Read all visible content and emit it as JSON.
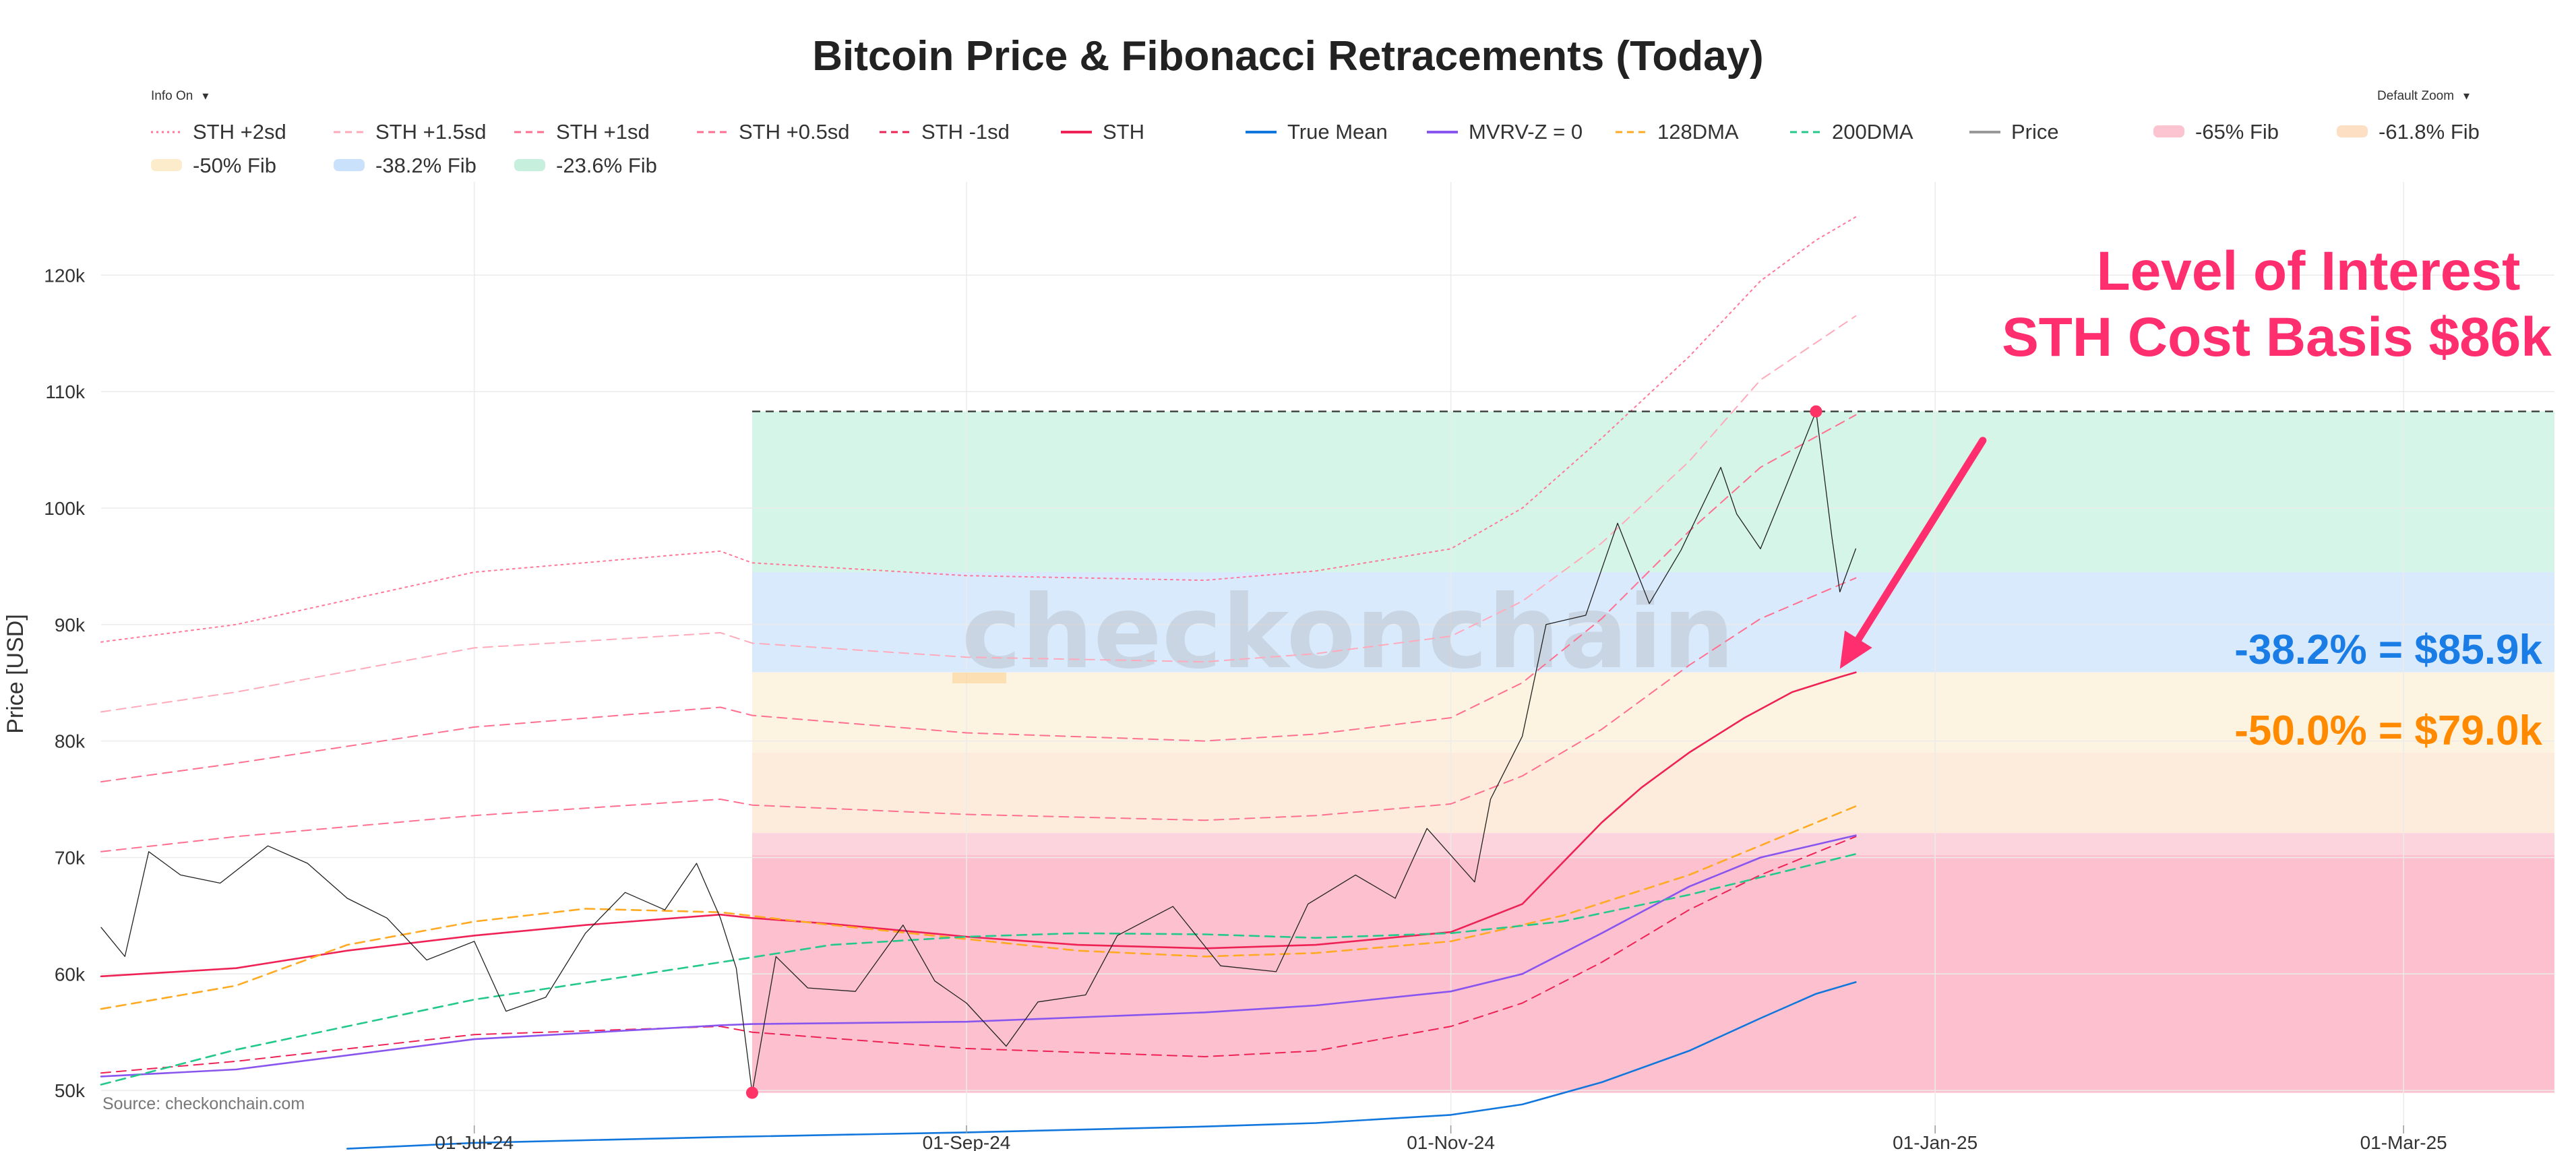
{
  "controls": {
    "info_toggle": "Info On",
    "zoom_select": "Default Zoom"
  },
  "chart_data": {
    "type": "line",
    "title": "Bitcoin Price & Fibonacci Retracements (Today)",
    "ylabel": "Price [USD]",
    "xlabel": "",
    "y_scale": "linear",
    "ylim": [
      47000,
      128000
    ],
    "y_ticks": [
      50000,
      60000,
      70000,
      80000,
      90000,
      100000,
      110000,
      120000
    ],
    "y_tick_labels": [
      "50k",
      "60k",
      "70k",
      "80k",
      "90k",
      "100k",
      "110k",
      "120k"
    ],
    "xlim": [
      "2024-05-15",
      "2025-03-20"
    ],
    "x_ticks": [
      "2024-07-01",
      "2024-09-01",
      "2024-11-01",
      "2025-01-01",
      "2025-03-01"
    ],
    "x_tick_labels": [
      "01-Jul-24",
      "01-Sep-24",
      "01-Nov-24",
      "01-Jan-25",
      "01-Mar-25"
    ],
    "grid": true,
    "legend_position": "top",
    "source": "Source: checkonchain.com",
    "watermark": "checkonchain",
    "fib_range": {
      "start": "2024-08-05",
      "end": "2025-03-20",
      "low": 49800,
      "high": 108300
    },
    "fib_bands": [
      {
        "name": "-23.6% Fib",
        "from": 94500,
        "to": 108300,
        "color": "#d4f5e7"
      },
      {
        "name": "-38.2% Fib",
        "from": 85900,
        "to": 94500,
        "color": "#d9eafd"
      },
      {
        "name": "-50% Fib",
        "from": 79000,
        "to": 85900,
        "color": "#fdf3e1"
      },
      {
        "name": "-61.8% Fib",
        "from": 72100,
        "to": 79000,
        "color": "#fdecdc"
      },
      {
        "name": "-65% Fib",
        "from": 70200,
        "to": 72100,
        "color": "#fcd4dd"
      },
      {
        "name": "below -65%",
        "from": 49800,
        "to": 70200,
        "color": "#fdc0cf"
      }
    ],
    "ath_line": {
      "value": 108300,
      "start": "2024-08-05",
      "end": "2025-03-20"
    },
    "markers": [
      {
        "date": "2024-08-05",
        "value": 49800,
        "color": "#ff3366"
      },
      {
        "date": "2024-12-17",
        "value": 108300,
        "color": "#ff3366"
      }
    ],
    "legend": [
      {
        "label": "STH +2sd",
        "color": "#ff7799",
        "style": "dot"
      },
      {
        "label": "STH +1.5sd",
        "color": "#ffaabb",
        "style": "dash"
      },
      {
        "label": "STH +1sd",
        "color": "#ff6f8f",
        "style": "dash"
      },
      {
        "label": "STH +0.5sd",
        "color": "#ff6f8f",
        "style": "dash"
      },
      {
        "label": "STH -1sd",
        "color": "#ee2255",
        "style": "dash"
      },
      {
        "label": "STH",
        "color": "#ee2255",
        "style": "solid"
      },
      {
        "label": "True Mean",
        "color": "#1177dd",
        "style": "solid"
      },
      {
        "label": "MVRV-Z = 0",
        "color": "#8855ee",
        "style": "solid"
      },
      {
        "label": "128DMA",
        "color": "#ffaa22",
        "style": "dash"
      },
      {
        "label": "200DMA",
        "color": "#22c98a",
        "style": "dash"
      },
      {
        "label": "Price",
        "color": "#999999",
        "style": "solid"
      },
      {
        "label": "-65% Fib",
        "color": "#fcc4d0",
        "style": "band"
      },
      {
        "label": "-61.8% Fib",
        "color": "#fde0c4",
        "style": "band"
      },
      {
        "label": "-50% Fib",
        "color": "#fdeccc",
        "style": "band"
      },
      {
        "label": "-38.2% Fib",
        "color": "#c9e1fb",
        "style": "band"
      },
      {
        "label": "-23.6% Fib",
        "color": "#c6f0dd",
        "style": "band"
      }
    ],
    "annotations": [
      {
        "text": "Level of Interest",
        "color": "#ff2e6e"
      },
      {
        "text": "STH Cost Basis $86k",
        "color": "#ff2e6e"
      },
      {
        "text": "-38.2% = $85.9k",
        "color": "#1a7de6"
      },
      {
        "text": "-50.0% = $79.0k",
        "color": "#ff8a00"
      }
    ],
    "arrow": {
      "from_date": "2025-01-07",
      "from_value": 105800,
      "to_date": "2024-12-20",
      "to_value": 86200,
      "color": "#ff2e6e"
    },
    "series": [
      {
        "name": "STH +2sd",
        "color": "#ff7799",
        "style": "dot",
        "points": [
          [
            "2024-05-15",
            88500
          ],
          [
            "2024-06-01",
            90000
          ],
          [
            "2024-07-01",
            94500
          ],
          [
            "2024-08-01",
            96300
          ],
          [
            "2024-08-05",
            95300
          ],
          [
            "2024-09-01",
            94200
          ],
          [
            "2024-10-01",
            93800
          ],
          [
            "2024-10-15",
            94600
          ],
          [
            "2024-11-01",
            96500
          ],
          [
            "2024-11-10",
            100000
          ],
          [
            "2024-11-20",
            106000
          ],
          [
            "2024-12-01",
            113000
          ],
          [
            "2024-12-10",
            119500
          ],
          [
            "2024-12-17",
            123000
          ],
          [
            "2024-12-22",
            125000
          ]
        ]
      },
      {
        "name": "STH +1.5sd",
        "color": "#ffaabb",
        "style": "dash",
        "points": [
          [
            "2024-05-15",
            82500
          ],
          [
            "2024-06-01",
            84200
          ],
          [
            "2024-07-01",
            88000
          ],
          [
            "2024-08-01",
            89300
          ],
          [
            "2024-08-05",
            88400
          ],
          [
            "2024-09-01",
            87200
          ],
          [
            "2024-10-01",
            86800
          ],
          [
            "2024-10-15",
            87500
          ],
          [
            "2024-11-01",
            89000
          ],
          [
            "2024-11-10",
            92000
          ],
          [
            "2024-11-20",
            97000
          ],
          [
            "2024-12-01",
            104000
          ],
          [
            "2024-12-10",
            111000
          ],
          [
            "2024-12-22",
            116500
          ]
        ]
      },
      {
        "name": "STH +1sd",
        "color": "#ff6f8f",
        "style": "dash",
        "points": [
          [
            "2024-05-15",
            76500
          ],
          [
            "2024-06-01",
            78100
          ],
          [
            "2024-07-01",
            81200
          ],
          [
            "2024-08-01",
            82900
          ],
          [
            "2024-08-05",
            82200
          ],
          [
            "2024-09-01",
            80700
          ],
          [
            "2024-10-01",
            80000
          ],
          [
            "2024-10-15",
            80600
          ],
          [
            "2024-11-01",
            82000
          ],
          [
            "2024-11-10",
            85000
          ],
          [
            "2024-11-20",
            90500
          ],
          [
            "2024-12-01",
            98000
          ],
          [
            "2024-12-10",
            103500
          ],
          [
            "2024-12-22",
            108000
          ]
        ]
      },
      {
        "name": "STH +0.5sd",
        "color": "#ff6f8f",
        "style": "dash",
        "points": [
          [
            "2024-05-15",
            70500
          ],
          [
            "2024-06-01",
            71800
          ],
          [
            "2024-07-01",
            73600
          ],
          [
            "2024-08-01",
            75000
          ],
          [
            "2024-08-05",
            74500
          ],
          [
            "2024-09-01",
            73700
          ],
          [
            "2024-10-01",
            73200
          ],
          [
            "2024-10-15",
            73600
          ],
          [
            "2024-11-01",
            74600
          ],
          [
            "2024-11-10",
            77000
          ],
          [
            "2024-11-20",
            81000
          ],
          [
            "2024-12-01",
            86500
          ],
          [
            "2024-12-10",
            90500
          ],
          [
            "2024-12-22",
            94000
          ]
        ]
      },
      {
        "name": "STH -1sd",
        "color": "#ee2255",
        "style": "dash",
        "points": [
          [
            "2024-05-15",
            51500
          ],
          [
            "2024-06-01",
            52500
          ],
          [
            "2024-07-01",
            54800
          ],
          [
            "2024-08-01",
            55500
          ],
          [
            "2024-08-05",
            55000
          ],
          [
            "2024-09-01",
            53600
          ],
          [
            "2024-10-01",
            52900
          ],
          [
            "2024-10-15",
            53400
          ],
          [
            "2024-11-01",
            55500
          ],
          [
            "2024-11-10",
            57500
          ],
          [
            "2024-11-20",
            61000
          ],
          [
            "2024-12-01",
            65500
          ],
          [
            "2024-12-10",
            68500
          ],
          [
            "2024-12-22",
            71800
          ]
        ]
      },
      {
        "name": "STH",
        "color": "#ee2255",
        "style": "solid",
        "width": 2.6,
        "points": [
          [
            "2024-05-15",
            59800
          ],
          [
            "2024-06-01",
            60500
          ],
          [
            "2024-06-15",
            62000
          ],
          [
            "2024-07-01",
            63300
          ],
          [
            "2024-07-15",
            64200
          ],
          [
            "2024-08-01",
            65100
          ],
          [
            "2024-08-05",
            64800
          ],
          [
            "2024-08-15",
            64300
          ],
          [
            "2024-09-01",
            63200
          ],
          [
            "2024-09-15",
            62500
          ],
          [
            "2024-10-01",
            62200
          ],
          [
            "2024-10-15",
            62500
          ],
          [
            "2024-11-01",
            63600
          ],
          [
            "2024-11-10",
            66000
          ],
          [
            "2024-11-15",
            69500
          ],
          [
            "2024-11-20",
            73000
          ],
          [
            "2024-11-25",
            76000
          ],
          [
            "2024-12-01",
            79000
          ],
          [
            "2024-12-08",
            82000
          ],
          [
            "2024-12-14",
            84200
          ],
          [
            "2024-12-20",
            85500
          ],
          [
            "2024-12-22",
            85900
          ]
        ]
      },
      {
        "name": "True Mean",
        "color": "#1177dd",
        "style": "solid",
        "width": 2.6,
        "points": [
          [
            "2024-06-15",
            45000
          ],
          [
            "2024-07-01",
            45500
          ],
          [
            "2024-08-01",
            46000
          ],
          [
            "2024-09-01",
            46400
          ],
          [
            "2024-10-01",
            46900
          ],
          [
            "2024-10-15",
            47200
          ],
          [
            "2024-11-01",
            47900
          ],
          [
            "2024-11-10",
            48800
          ],
          [
            "2024-11-20",
            50700
          ],
          [
            "2024-12-01",
            53400
          ],
          [
            "2024-12-10",
            56200
          ],
          [
            "2024-12-17",
            58300
          ],
          [
            "2024-12-22",
            59300
          ]
        ]
      },
      {
        "name": "MVRV-Z = 0",
        "color": "#8855ee",
        "style": "solid",
        "width": 2.6,
        "points": [
          [
            "2024-05-15",
            51200
          ],
          [
            "2024-06-01",
            51800
          ],
          [
            "2024-07-01",
            54400
          ],
          [
            "2024-08-01",
            55600
          ],
          [
            "2024-08-05",
            55700
          ],
          [
            "2024-09-01",
            55900
          ],
          [
            "2024-10-01",
            56700
          ],
          [
            "2024-10-15",
            57300
          ],
          [
            "2024-11-01",
            58500
          ],
          [
            "2024-11-10",
            60000
          ],
          [
            "2024-11-20",
            63500
          ],
          [
            "2024-12-01",
            67500
          ],
          [
            "2024-12-10",
            70000
          ],
          [
            "2024-12-22",
            71900
          ]
        ]
      },
      {
        "name": "128DMA",
        "color": "#ffaa22",
        "style": "dash",
        "width": 2.6,
        "points": [
          [
            "2024-05-15",
            57000
          ],
          [
            "2024-06-01",
            59000
          ],
          [
            "2024-06-15",
            62500
          ],
          [
            "2024-07-01",
            64500
          ],
          [
            "2024-07-15",
            65600
          ],
          [
            "2024-08-01",
            65300
          ],
          [
            "2024-08-15",
            64200
          ],
          [
            "2024-09-01",
            63000
          ],
          [
            "2024-09-15",
            62000
          ],
          [
            "2024-10-01",
            61500
          ],
          [
            "2024-10-15",
            61800
          ],
          [
            "2024-11-01",
            62800
          ],
          [
            "2024-11-15",
            65000
          ],
          [
            "2024-12-01",
            68500
          ],
          [
            "2024-12-22",
            74400
          ]
        ]
      },
      {
        "name": "200DMA",
        "color": "#22c98a",
        "style": "dash",
        "width": 2.6,
        "points": [
          [
            "2024-05-15",
            50500
          ],
          [
            "2024-06-01",
            53500
          ],
          [
            "2024-07-01",
            57800
          ],
          [
            "2024-08-01",
            61000
          ],
          [
            "2024-08-15",
            62500
          ],
          [
            "2024-09-01",
            63200
          ],
          [
            "2024-09-15",
            63500
          ],
          [
            "2024-10-01",
            63400
          ],
          [
            "2024-10-15",
            63100
          ],
          [
            "2024-11-01",
            63500
          ],
          [
            "2024-11-15",
            64500
          ],
          [
            "2024-12-01",
            66800
          ],
          [
            "2024-12-22",
            70300
          ]
        ]
      },
      {
        "name": "Price",
        "color": "#222222",
        "style": "solid",
        "width": 1.3,
        "points": [
          [
            "2024-05-15",
            64000
          ],
          [
            "2024-05-18",
            61500
          ],
          [
            "2024-05-21",
            70500
          ],
          [
            "2024-05-25",
            68500
          ],
          [
            "2024-05-30",
            67800
          ],
          [
            "2024-06-05",
            71000
          ],
          [
            "2024-06-10",
            69500
          ],
          [
            "2024-06-15",
            66500
          ],
          [
            "2024-06-20",
            64800
          ],
          [
            "2024-06-25",
            61200
          ],
          [
            "2024-07-01",
            62800
          ],
          [
            "2024-07-05",
            56800
          ],
          [
            "2024-07-10",
            58000
          ],
          [
            "2024-07-15",
            63500
          ],
          [
            "2024-07-20",
            67000
          ],
          [
            "2024-07-25",
            65500
          ],
          [
            "2024-07-29",
            69500
          ],
          [
            "2024-08-01",
            64800
          ],
          [
            "2024-08-03",
            60500
          ],
          [
            "2024-08-05",
            49800
          ],
          [
            "2024-08-08",
            61500
          ],
          [
            "2024-08-12",
            58800
          ],
          [
            "2024-08-18",
            58500
          ],
          [
            "2024-08-24",
            64200
          ],
          [
            "2024-08-28",
            59400
          ],
          [
            "2024-09-01",
            57500
          ],
          [
            "2024-09-06",
            53800
          ],
          [
            "2024-09-10",
            57600
          ],
          [
            "2024-09-16",
            58200
          ],
          [
            "2024-09-20",
            63300
          ],
          [
            "2024-09-27",
            65800
          ],
          [
            "2024-10-03",
            60700
          ],
          [
            "2024-10-10",
            60200
          ],
          [
            "2024-10-14",
            66000
          ],
          [
            "2024-10-20",
            68500
          ],
          [
            "2024-10-25",
            66500
          ],
          [
            "2024-10-29",
            72500
          ],
          [
            "2024-11-04",
            67900
          ],
          [
            "2024-11-06",
            75000
          ],
          [
            "2024-11-10",
            80400
          ],
          [
            "2024-11-13",
            90000
          ],
          [
            "2024-11-18",
            90800
          ],
          [
            "2024-11-22",
            98700
          ],
          [
            "2024-11-26",
            91800
          ],
          [
            "2024-11-30",
            96400
          ],
          [
            "2024-12-05",
            103500
          ],
          [
            "2024-12-07",
            99500
          ],
          [
            "2024-12-10",
            96500
          ],
          [
            "2024-12-13",
            101500
          ],
          [
            "2024-12-17",
            108300
          ],
          [
            "2024-12-19",
            97500
          ],
          [
            "2024-12-20",
            92800
          ],
          [
            "2024-12-22",
            96500
          ]
        ]
      }
    ]
  }
}
